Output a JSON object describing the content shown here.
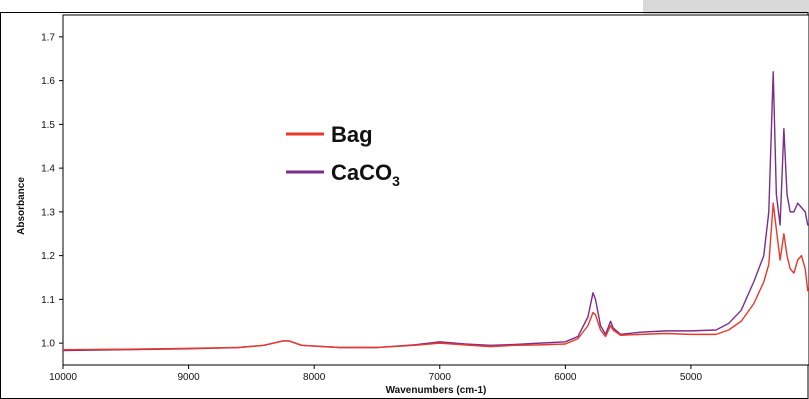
{
  "chart_data": {
    "type": "line",
    "title": "",
    "xlabel": "Wavenumbers (cm-1)",
    "ylabel": "Absorbance",
    "xlim": [
      10000,
      4060
    ],
    "ylim": [
      0.95,
      1.75
    ],
    "x_reversed": true,
    "grid": false,
    "legend_position": "upper-middle",
    "x_ticks": [
      10000,
      9000,
      8000,
      7000,
      6000,
      5000
    ],
    "x_tick_labels": [
      "10000",
      "9000",
      "8000",
      "7000",
      "6000",
      "5000"
    ],
    "y_ticks": [
      1.0,
      1.1,
      1.2,
      1.3,
      1.4,
      1.5,
      1.6,
      1.7
    ],
    "y_tick_labels": [
      "1.0",
      "1.1",
      "1.2",
      "1.3",
      "1.4",
      "1.5",
      "1.6",
      "1.7"
    ],
    "series": [
      {
        "name": "Bag",
        "color": "#e8392a",
        "points": [
          [
            10000,
            0.985
          ],
          [
            9500,
            0.986
          ],
          [
            9000,
            0.988
          ],
          [
            8600,
            0.99
          ],
          [
            8400,
            0.995
          ],
          [
            8250,
            1.005
          ],
          [
            8200,
            1.005
          ],
          [
            8100,
            0.995
          ],
          [
            7800,
            0.99
          ],
          [
            7500,
            0.99
          ],
          [
            7200,
            0.995
          ],
          [
            7000,
            1.0
          ],
          [
            6800,
            0.996
          ],
          [
            6600,
            0.992
          ],
          [
            6400,
            0.995
          ],
          [
            6200,
            0.996
          ],
          [
            6000,
            0.998
          ],
          [
            5900,
            1.01
          ],
          [
            5820,
            1.04
          ],
          [
            5780,
            1.07
          ],
          [
            5760,
            1.065
          ],
          [
            5720,
            1.03
          ],
          [
            5680,
            1.015
          ],
          [
            5640,
            1.04
          ],
          [
            5620,
            1.03
          ],
          [
            5560,
            1.018
          ],
          [
            5400,
            1.02
          ],
          [
            5200,
            1.022
          ],
          [
            5000,
            1.02
          ],
          [
            4800,
            1.02
          ],
          [
            4700,
            1.03
          ],
          [
            4600,
            1.05
          ],
          [
            4500,
            1.09
          ],
          [
            4420,
            1.14
          ],
          [
            4380,
            1.18
          ],
          [
            4345,
            1.32
          ],
          [
            4320,
            1.26
          ],
          [
            4290,
            1.19
          ],
          [
            4260,
            1.25
          ],
          [
            4235,
            1.2
          ],
          [
            4210,
            1.17
          ],
          [
            4180,
            1.16
          ],
          [
            4150,
            1.19
          ],
          [
            4120,
            1.2
          ],
          [
            4090,
            1.17
          ],
          [
            4070,
            1.12
          ],
          [
            4060,
            1.12
          ]
        ]
      },
      {
        "name": "CaCO3",
        "color": "#7b2d8b",
        "points": [
          [
            10000,
            0.983
          ],
          [
            9500,
            0.985
          ],
          [
            9000,
            0.987
          ],
          [
            8600,
            0.99
          ],
          [
            8400,
            0.995
          ],
          [
            8250,
            1.005
          ],
          [
            8200,
            1.005
          ],
          [
            8100,
            0.995
          ],
          [
            7800,
            0.99
          ],
          [
            7500,
            0.99
          ],
          [
            7200,
            0.996
          ],
          [
            7000,
            1.003
          ],
          [
            6800,
            0.998
          ],
          [
            6600,
            0.995
          ],
          [
            6400,
            0.997
          ],
          [
            6200,
            1.0
          ],
          [
            6000,
            1.003
          ],
          [
            5900,
            1.015
          ],
          [
            5820,
            1.06
          ],
          [
            5780,
            1.115
          ],
          [
            5760,
            1.1
          ],
          [
            5720,
            1.04
          ],
          [
            5680,
            1.02
          ],
          [
            5640,
            1.05
          ],
          [
            5620,
            1.035
          ],
          [
            5560,
            1.02
          ],
          [
            5400,
            1.025
          ],
          [
            5200,
            1.028
          ],
          [
            5000,
            1.028
          ],
          [
            4800,
            1.03
          ],
          [
            4700,
            1.045
          ],
          [
            4600,
            1.075
          ],
          [
            4500,
            1.14
          ],
          [
            4420,
            1.2
          ],
          [
            4380,
            1.3
          ],
          [
            4345,
            1.62
          ],
          [
            4320,
            1.34
          ],
          [
            4290,
            1.27
          ],
          [
            4260,
            1.49
          ],
          [
            4235,
            1.34
          ],
          [
            4210,
            1.3
          ],
          [
            4180,
            1.3
          ],
          [
            4150,
            1.32
          ],
          [
            4120,
            1.31
          ],
          [
            4090,
            1.3
          ],
          [
            4070,
            1.27
          ],
          [
            4060,
            1.27
          ]
        ]
      }
    ]
  },
  "legend": {
    "items": [
      {
        "label": "Bag",
        "color": "#e8392a"
      },
      {
        "label": "CaCO",
        "subscript": "3",
        "color": "#7b2d8b"
      }
    ]
  }
}
